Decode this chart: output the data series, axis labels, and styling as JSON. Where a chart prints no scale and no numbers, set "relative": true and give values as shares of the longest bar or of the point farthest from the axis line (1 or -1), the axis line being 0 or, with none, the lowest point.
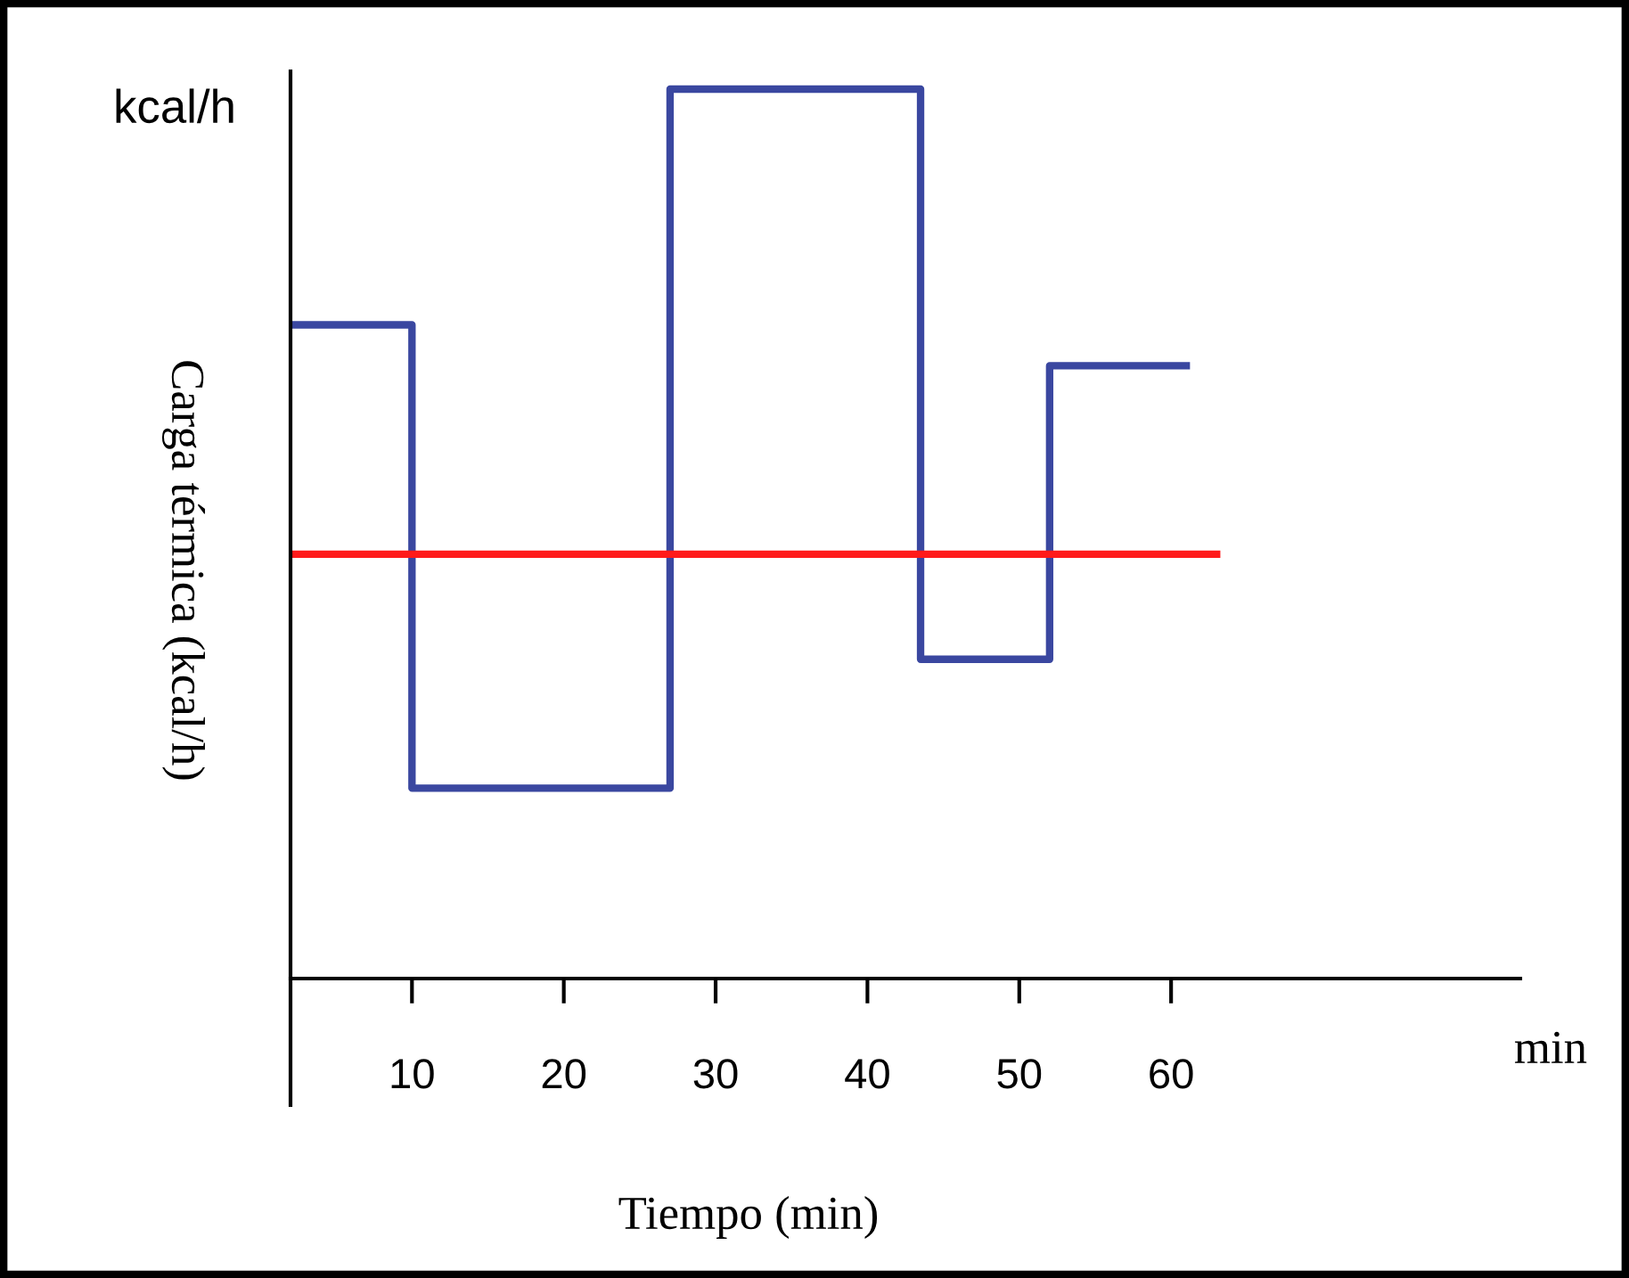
{
  "chart_data": {
    "type": "step",
    "relative": true,
    "xlabel": "Tiempo (min)",
    "ylabel": "Carga térmica (kcal/h)",
    "annotations": [
      "kcal/h",
      "min"
    ],
    "xlim": [
      2,
      83
    ],
    "xticks": [
      10,
      20,
      30,
      40,
      50,
      60
    ],
    "grid": false,
    "marker": "none",
    "line_style": "solid",
    "series": [
      {
        "color": "#3a47a0",
        "x": [
          2,
          10,
          27,
          43.5,
          52,
          61
        ],
        "values": [
          0.735,
          0.214,
          1,
          0.359,
          0.689,
          0.689
        ]
      },
      {
        "type": "line",
        "color": "#ff1a1a",
        "x": [
          2,
          63
        ],
        "values": [
          0.477,
          0.477
        ]
      }
    ]
  }
}
